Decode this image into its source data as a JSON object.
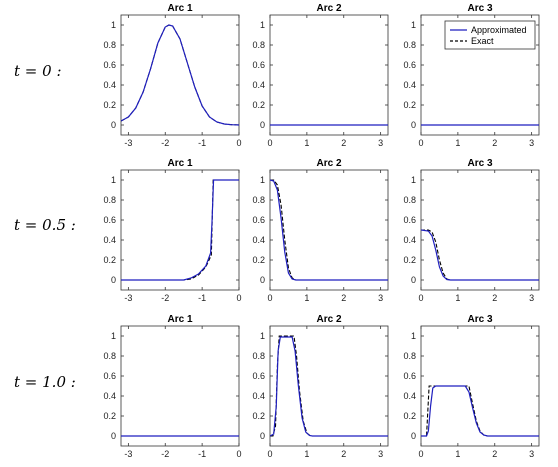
{
  "chart_data": {
    "type": "line",
    "rows": [
      {
        "label": "t = 0 :"
      },
      {
        "label": "t = 0.5 :"
      },
      {
        "label": "t = 1.0 :"
      }
    ],
    "legend": {
      "placement": "top-right of Arc 3 (row t = 0)",
      "entries": [
        {
          "name": "Approximated",
          "color": "#1f1fbf",
          "style": "solid"
        },
        {
          "name": "Exact",
          "color": "#000000",
          "style": "dashed"
        }
      ]
    },
    "colors": {
      "approximated": "#1f1fbf",
      "exact": "#000000"
    },
    "axes": {
      "arc1": {
        "xlim": [
          -3.2,
          0
        ],
        "xticks": [
          -3,
          -2,
          -1,
          0
        ],
        "xtick_labels": [
          "-3",
          "-2",
          "-1",
          "0"
        ]
      },
      "arc23": {
        "xlim": [
          0,
          3.2
        ],
        "xticks": [
          0,
          1,
          2,
          3
        ],
        "xtick_labels": [
          "0",
          "1",
          "2",
          "3"
        ]
      },
      "ylim": [
        -0.1,
        1.1
      ],
      "yticks": [
        0,
        0.2,
        0.4,
        0.6,
        0.8,
        1
      ],
      "ytick_labels": [
        "0",
        "0.2",
        "0.4",
        "0.6",
        "0.8",
        "1"
      ],
      "grid": false
    },
    "panels": [
      {
        "row": 0,
        "col": 0,
        "title": "Arc 1",
        "axis": "arc1",
        "exact": [
          [
            -3.2,
            0.04
          ],
          [
            -3.0,
            0.08
          ],
          [
            -2.8,
            0.17
          ],
          [
            -2.6,
            0.33
          ],
          [
            -2.4,
            0.56
          ],
          [
            -2.2,
            0.82
          ],
          [
            -2.0,
            0.98
          ],
          [
            -1.9,
            1.0
          ],
          [
            -1.8,
            0.99
          ],
          [
            -1.6,
            0.86
          ],
          [
            -1.4,
            0.62
          ],
          [
            -1.2,
            0.38
          ],
          [
            -1.0,
            0.19
          ],
          [
            -0.8,
            0.08
          ],
          [
            -0.6,
            0.03
          ],
          [
            -0.4,
            0.01
          ],
          [
            -0.2,
            0.003
          ],
          [
            0,
            0.0
          ]
        ],
        "approximated": [
          [
            -3.2,
            0.04
          ],
          [
            -3.0,
            0.08
          ],
          [
            -2.8,
            0.17
          ],
          [
            -2.6,
            0.33
          ],
          [
            -2.4,
            0.56
          ],
          [
            -2.2,
            0.82
          ],
          [
            -2.0,
            0.98
          ],
          [
            -1.9,
            1.0
          ],
          [
            -1.8,
            0.99
          ],
          [
            -1.6,
            0.86
          ],
          [
            -1.4,
            0.62
          ],
          [
            -1.2,
            0.38
          ],
          [
            -1.0,
            0.19
          ],
          [
            -0.8,
            0.08
          ],
          [
            -0.6,
            0.03
          ],
          [
            -0.4,
            0.01
          ],
          [
            -0.2,
            0.003
          ],
          [
            0,
            0.0
          ]
        ]
      },
      {
        "row": 0,
        "col": 1,
        "title": "Arc 2",
        "axis": "arc23",
        "exact": [
          [
            0,
            0
          ],
          [
            3.2,
            0
          ]
        ],
        "approximated": [
          [
            0,
            0
          ],
          [
            3.2,
            0
          ]
        ]
      },
      {
        "row": 0,
        "col": 2,
        "title": "Arc 3",
        "axis": "arc23",
        "exact": [
          [
            0,
            0
          ],
          [
            3.2,
            0
          ]
        ],
        "approximated": [
          [
            0,
            0
          ],
          [
            3.2,
            0
          ]
        ]
      },
      {
        "row": 1,
        "col": 0,
        "title": "Arc 1",
        "axis": "arc1",
        "exact": [
          [
            -3.2,
            0
          ],
          [
            -1.5,
            0
          ],
          [
            -1.3,
            0.01
          ],
          [
            -1.1,
            0.05
          ],
          [
            -0.9,
            0.13
          ],
          [
            -0.75,
            0.25
          ],
          [
            -0.7,
            1.0
          ],
          [
            0,
            1.0
          ]
        ],
        "approximated": [
          [
            -3.2,
            0
          ],
          [
            -1.5,
            0.0
          ],
          [
            -1.3,
            0.02
          ],
          [
            -1.1,
            0.06
          ],
          [
            -0.9,
            0.14
          ],
          [
            -0.77,
            0.27
          ],
          [
            -0.73,
            0.6
          ],
          [
            -0.69,
            1.0
          ],
          [
            0,
            1.0
          ]
        ]
      },
      {
        "row": 1,
        "col": 1,
        "title": "Arc 2",
        "axis": "arc23",
        "exact": [
          [
            0,
            1.0
          ],
          [
            0.1,
            1.0
          ],
          [
            0.2,
            0.95
          ],
          [
            0.3,
            0.75
          ],
          [
            0.4,
            0.4
          ],
          [
            0.5,
            0.12
          ],
          [
            0.6,
            0.02
          ],
          [
            0.7,
            0
          ],
          [
            3.2,
            0
          ]
        ],
        "approximated": [
          [
            0,
            1.0
          ],
          [
            0.1,
            0.99
          ],
          [
            0.2,
            0.9
          ],
          [
            0.3,
            0.62
          ],
          [
            0.4,
            0.28
          ],
          [
            0.5,
            0.07
          ],
          [
            0.6,
            0.01
          ],
          [
            0.7,
            0
          ],
          [
            3.2,
            0
          ]
        ]
      },
      {
        "row": 1,
        "col": 2,
        "title": "Arc 3",
        "axis": "arc23",
        "exact": [
          [
            0,
            0.5
          ],
          [
            0.2,
            0.5
          ],
          [
            0.3,
            0.48
          ],
          [
            0.4,
            0.38
          ],
          [
            0.5,
            0.2
          ],
          [
            0.6,
            0.07
          ],
          [
            0.7,
            0.01
          ],
          [
            0.8,
            0
          ],
          [
            3.2,
            0
          ]
        ],
        "approximated": [
          [
            0,
            0.5
          ],
          [
            0.2,
            0.49
          ],
          [
            0.3,
            0.44
          ],
          [
            0.4,
            0.3
          ],
          [
            0.5,
            0.13
          ],
          [
            0.6,
            0.04
          ],
          [
            0.7,
            0.005
          ],
          [
            0.8,
            0
          ],
          [
            3.2,
            0
          ]
        ]
      },
      {
        "row": 2,
        "col": 0,
        "title": "Arc 1",
        "axis": "arc1",
        "exact": [
          [
            -3.2,
            0
          ],
          [
            0,
            0
          ]
        ],
        "approximated": [
          [
            -3.2,
            0
          ],
          [
            0,
            0
          ]
        ]
      },
      {
        "row": 2,
        "col": 1,
        "title": "Arc 2",
        "axis": "arc23",
        "exact": [
          [
            0,
            0
          ],
          [
            0.08,
            0
          ],
          [
            0.15,
            0.1
          ],
          [
            0.2,
            0.7
          ],
          [
            0.25,
            1.0
          ],
          [
            0.65,
            1.0
          ],
          [
            0.72,
            0.8
          ],
          [
            0.8,
            0.45
          ],
          [
            0.9,
            0.15
          ],
          [
            1.0,
            0.03
          ],
          [
            1.1,
            0
          ],
          [
            3.2,
            0
          ]
        ],
        "approximated": [
          [
            0,
            0
          ],
          [
            0.1,
            0.02
          ],
          [
            0.17,
            0.3
          ],
          [
            0.22,
            0.85
          ],
          [
            0.28,
            0.99
          ],
          [
            0.6,
            0.99
          ],
          [
            0.68,
            0.85
          ],
          [
            0.77,
            0.5
          ],
          [
            0.87,
            0.18
          ],
          [
            0.97,
            0.04
          ],
          [
            1.07,
            0.005
          ],
          [
            1.15,
            0
          ],
          [
            3.2,
            0
          ]
        ]
      },
      {
        "row": 2,
        "col": 2,
        "title": "Arc 3",
        "axis": "arc23",
        "exact": [
          [
            0,
            0
          ],
          [
            0.15,
            0
          ],
          [
            0.22,
            0.5
          ],
          [
            1.3,
            0.5
          ],
          [
            1.4,
            0.32
          ],
          [
            1.5,
            0.15
          ],
          [
            1.6,
            0.05
          ],
          [
            1.7,
            0.01
          ],
          [
            1.8,
            0
          ],
          [
            3.2,
            0
          ]
        ],
        "approximated": [
          [
            0,
            0
          ],
          [
            0.15,
            0.0
          ],
          [
            0.2,
            0.05
          ],
          [
            0.26,
            0.3
          ],
          [
            0.32,
            0.48
          ],
          [
            0.4,
            0.5
          ],
          [
            1.2,
            0.5
          ],
          [
            1.3,
            0.44
          ],
          [
            1.4,
            0.28
          ],
          [
            1.5,
            0.13
          ],
          [
            1.6,
            0.04
          ],
          [
            1.7,
            0.01
          ],
          [
            1.8,
            0
          ],
          [
            3.2,
            0
          ]
        ]
      }
    ]
  }
}
